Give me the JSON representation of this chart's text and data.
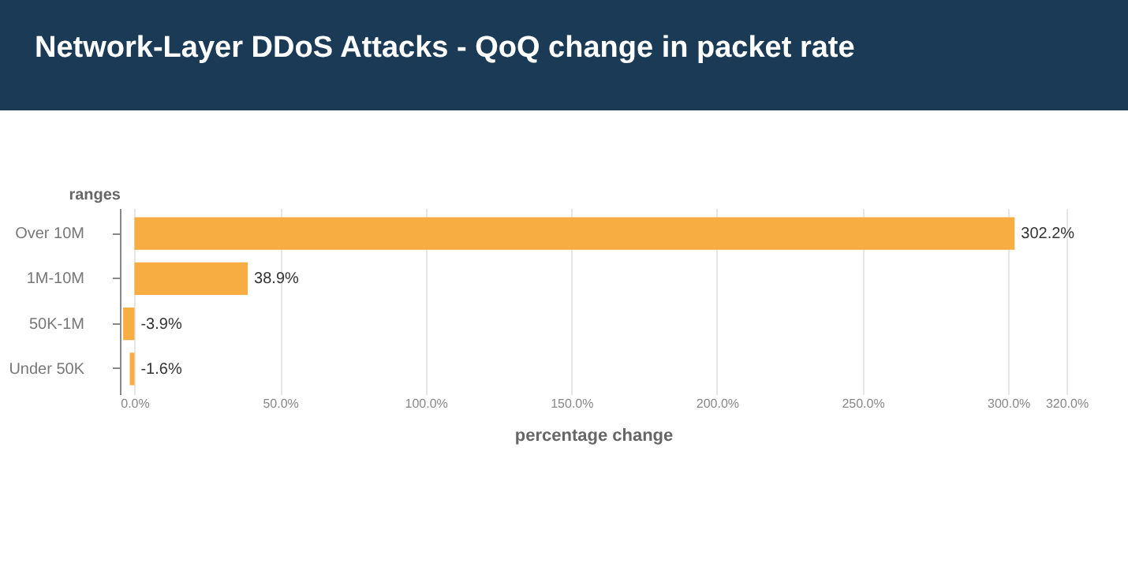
{
  "chart_data": {
    "type": "bar",
    "orientation": "horizontal",
    "title": "Network-Layer DDoS Attacks - QoQ change in packet rate",
    "xlabel": "percentage change",
    "ylabel": "ranges",
    "categories": [
      "Over 10M",
      "1M-10M",
      "50K-1M",
      "Under 50K"
    ],
    "values": [
      302.2,
      38.9,
      -3.9,
      -1.6
    ],
    "color": "#f8ad43",
    "value_labels": [
      "302.2%",
      "38.9%",
      "-3.9%",
      "-1.6%"
    ],
    "xlim": [
      -5,
      320
    ],
    "xticks": [
      {
        "value": 0,
        "label": "0.0%"
      },
      {
        "value": 50,
        "label": "50.0%"
      },
      {
        "value": 100,
        "label": "100.0%"
      },
      {
        "value": 150,
        "label": "150.0%"
      },
      {
        "value": 200,
        "label": "200.0%"
      },
      {
        "value": 250,
        "label": "250.0%"
      },
      {
        "value": 300,
        "label": "300.0%"
      },
      {
        "value": 320,
        "label": "320.0%"
      }
    ],
    "grid": "x"
  }
}
